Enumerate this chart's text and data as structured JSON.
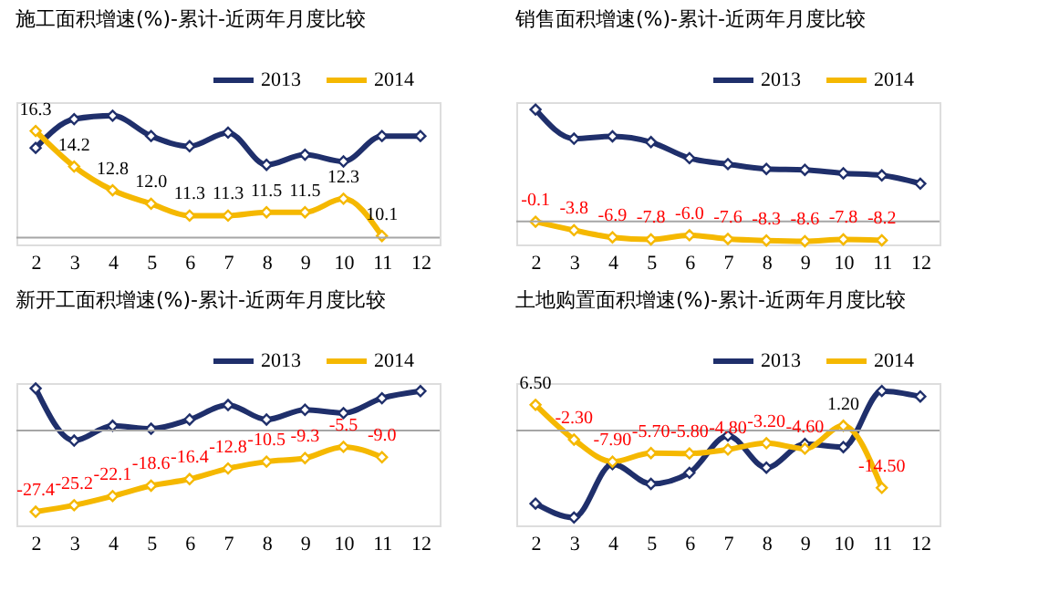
{
  "chart_data": [
    {
      "type": "line",
      "title": "施工面积增速(%)-累计-近两年月度比较",
      "categories": [
        "2",
        "3",
        "4",
        "5",
        "6",
        "7",
        "8",
        "9",
        "10",
        "11",
        "12"
      ],
      "ylim": [
        9.6,
        18
      ],
      "tick_labels": "x",
      "legend": "top right",
      "marker": "diamond",
      "ref_lines": [
        {
          "axis": "y",
          "value": 10,
          "color": "#a6a6a6"
        }
      ],
      "series": [
        {
          "name": "2013",
          "color": "#1f2f6b",
          "values": [
            15.3,
            17.0,
            17.2,
            16.0,
            15.4,
            16.2,
            14.3,
            14.9,
            14.5,
            16.0,
            16.0
          ]
        },
        {
          "name": "2014",
          "color": "#f5b800",
          "values": [
            16.3,
            14.2,
            12.8,
            12.0,
            11.3,
            11.3,
            11.5,
            11.5,
            12.3,
            10.1,
            null
          ],
          "value_labels": [
            "16.3",
            "14.2",
            "12.8",
            "12.0",
            "11.3",
            "11.3",
            "11.5",
            "11.5",
            "12.3",
            "10.1",
            null
          ]
        }
      ]
    },
    {
      "type": "line",
      "title": "销售面积增速(%)-累计-近两年月度比较",
      "categories": [
        "2",
        "3",
        "4",
        "5",
        "6",
        "7",
        "8",
        "9",
        "10",
        "11",
        "12"
      ],
      "ylim": [
        -10,
        52
      ],
      "tick_labels": "x",
      "legend": "top right",
      "marker": "diamond",
      "ref_lines": [
        {
          "axis": "y",
          "value": 0,
          "color": "#a6a6a6"
        }
      ],
      "series": [
        {
          "name": "2013",
          "color": "#1f2f6b",
          "values": [
            48.8,
            36.1,
            37.1,
            34.6,
            27.6,
            25.0,
            22.9,
            22.5,
            21.0,
            20.1,
            16.5
          ]
        },
        {
          "name": "2014",
          "color": "#f5b800",
          "values": [
            -0.1,
            -3.8,
            -6.9,
            -7.8,
            -6.0,
            -7.6,
            -8.3,
            -8.6,
            -7.8,
            -8.2,
            null
          ],
          "value_labels": [
            "-0.1",
            "-3.8",
            "-6.9",
            "-7.8",
            "-6.0",
            "-7.6",
            "-8.3",
            "-8.6",
            "-7.8",
            "-8.2",
            null
          ]
        }
      ]
    },
    {
      "type": "line",
      "title": "新开工面积增速(%)-累计-近两年月度比较",
      "categories": [
        "2",
        "3",
        "4",
        "5",
        "6",
        "7",
        "8",
        "9",
        "10",
        "11",
        "12"
      ],
      "ylim": [
        -32,
        16
      ],
      "tick_labels": "x",
      "legend": "top right",
      "marker": "diamond",
      "ref_lines": [
        {
          "axis": "y",
          "value": 0,
          "color": "#a6a6a6"
        }
      ],
      "series": [
        {
          "name": "2013",
          "color": "#1f2f6b",
          "values": [
            14.2,
            -3.4,
            1.6,
            0.6,
            3.7,
            8.6,
            3.7,
            7.0,
            5.9,
            10.9,
            13.3
          ]
        },
        {
          "name": "2014",
          "color": "#f5b800",
          "values": [
            -27.4,
            -25.2,
            -22.1,
            -18.6,
            -16.4,
            -12.8,
            -10.5,
            -9.3,
            -5.5,
            -9.0,
            null
          ],
          "value_labels": [
            "-27.4",
            "-25.2",
            "-22.1",
            "-18.6",
            "-16.4",
            "-12.8",
            "-10.5",
            "-9.3",
            "-5.5",
            "-9.0",
            null
          ]
        }
      ]
    },
    {
      "type": "line",
      "title": "土地购置面积增速(%)-累计-近两年月度比较",
      "categories": [
        "2",
        "3",
        "4",
        "5",
        "6",
        "7",
        "8",
        "9",
        "10",
        "11",
        "12"
      ],
      "ylim": [
        -24,
        12
      ],
      "tick_labels": "x",
      "legend": "top right",
      "marker": "diamond",
      "ref_lines": [
        {
          "axis": "y",
          "value": 0,
          "color": "#a6a6a6"
        }
      ],
      "series": [
        {
          "name": "2013",
          "color": "#1f2f6b",
          "values": [
            -18.5,
            -22.0,
            -8.5,
            -13.5,
            -10.7,
            -1.3,
            -9.4,
            -3.4,
            -4.2,
            10.0,
            8.6
          ]
        },
        {
          "name": "2014",
          "color": "#f5b800",
          "values": [
            6.5,
            -2.3,
            -7.9,
            -5.7,
            -5.8,
            -4.8,
            -3.2,
            -4.6,
            1.2,
            -14.5,
            null
          ],
          "value_labels": [
            "6.50",
            "-2.30",
            "-7.90",
            "-5.70",
            "-5.80",
            "-4.80",
            "-3.20",
            "-4.60",
            "1.20",
            "-14.50",
            null
          ]
        }
      ]
    }
  ]
}
